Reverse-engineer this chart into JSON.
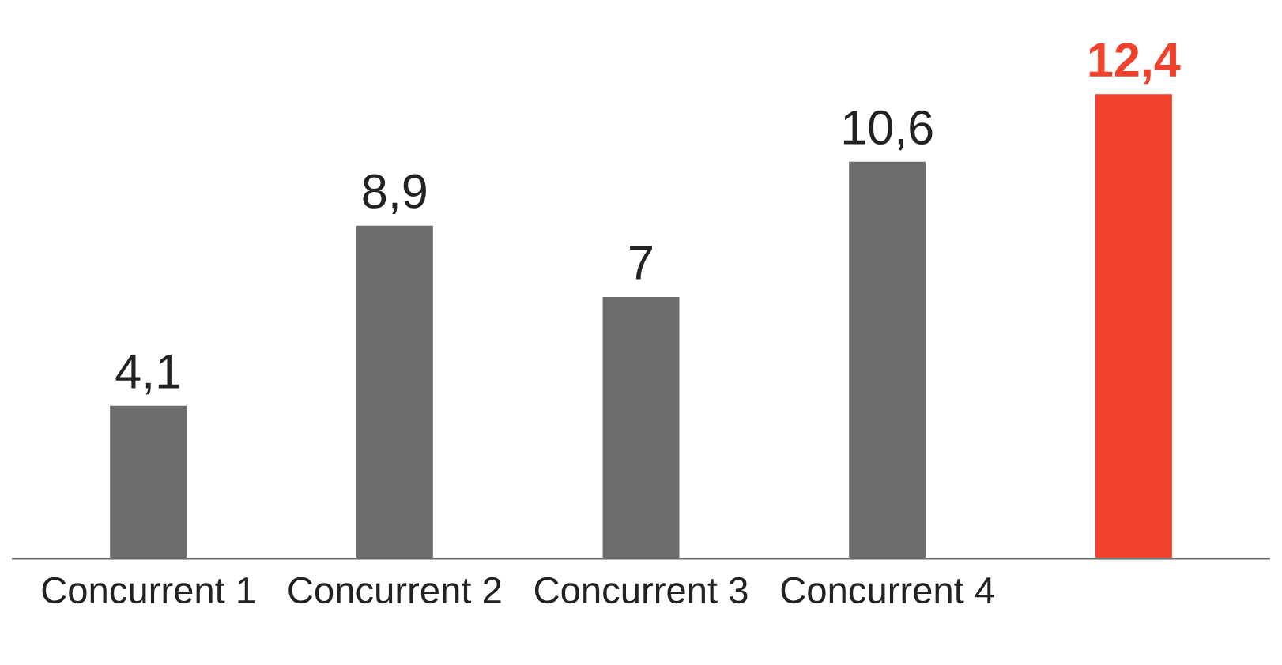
{
  "chart_data": {
    "type": "bar",
    "categories": [
      "Concurrent 1",
      "Concurrent 2",
      "Concurrent 3",
      "Concurrent 4",
      null
    ],
    "values": [
      4.1,
      8.9,
      7,
      10.6,
      12.4
    ],
    "colors": [
      "#6d6b6c",
      "#6d6b6c",
      "#6d6b6c",
      "#6d6b6c",
      "#ef412b"
    ],
    "value_labels": [
      "4,1",
      "8,9",
      "7",
      "10,6",
      "12,4"
    ],
    "grid": false,
    "legend": false
  }
}
